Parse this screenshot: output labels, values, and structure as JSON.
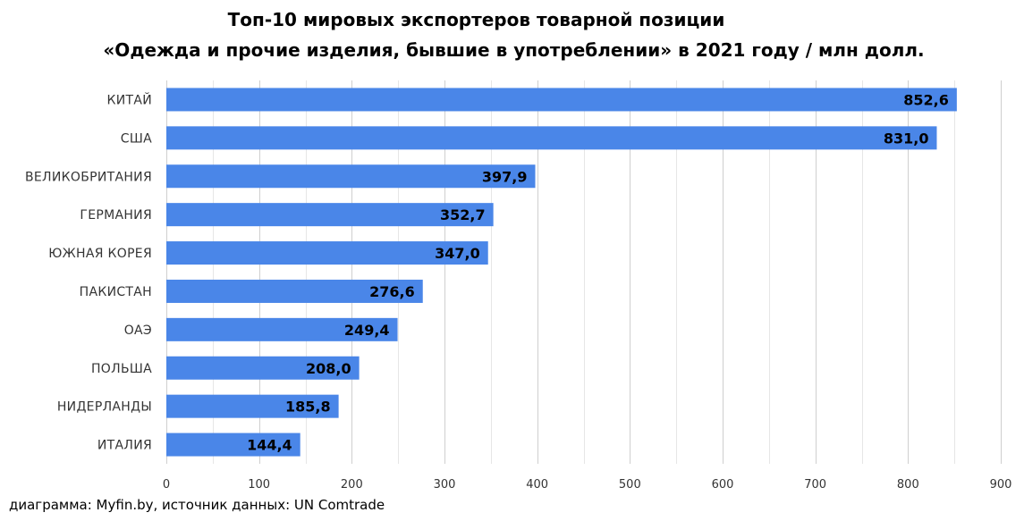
{
  "title": {
    "line1": "Топ-10 мировых экспортеров товарной позиции",
    "line2": "«Одежда и прочие изделия, бывшие в употреблении» в 2021 году / млн долл."
  },
  "caption": "диаграмма: Myfin.by, источник данных: UN Comtrade",
  "colors": {
    "bar": "#4a86e8",
    "grid": "#d9d9d9",
    "text": "#000000",
    "axis_text": "#333333"
  },
  "chart_data": {
    "type": "bar",
    "orientation": "horizontal",
    "categories": [
      "КИТАЙ",
      "США",
      "ВЕЛИКОБРИТАНИЯ",
      "ГЕРМАНИЯ",
      "ЮЖНАЯ КОРЕЯ",
      "ПАКИСТАН",
      "ОАЭ",
      "ПОЛЬША",
      "НИДЕРЛАНДЫ",
      "ИТАЛИЯ"
    ],
    "values": [
      852.6,
      831.0,
      397.9,
      352.7,
      347.0,
      276.6,
      249.4,
      208.0,
      185.8,
      144.4
    ],
    "value_labels": [
      "852,6",
      "831,0",
      "397,9",
      "352,7",
      "347,0",
      "276,6",
      "249,4",
      "208,0",
      "185,8",
      "144,4"
    ],
    "xlim": [
      0,
      900
    ],
    "x_ticks": [
      0,
      100,
      200,
      300,
      400,
      500,
      600,
      700,
      800,
      900
    ],
    "x_tick_labels": [
      "0",
      "100",
      "200",
      "300",
      "400",
      "500",
      "600",
      "700",
      "800",
      "900"
    ],
    "grid": true,
    "legend": "none"
  }
}
